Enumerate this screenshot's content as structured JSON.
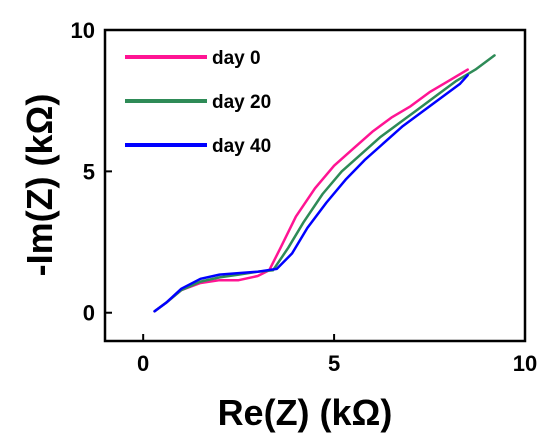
{
  "chart_data": {
    "type": "line",
    "xlabel": "Re(Z) (kΩ)",
    "ylabel": "-Im(Z) (kΩ)",
    "xlim": [
      -1,
      10
    ],
    "ylim": [
      -1,
      10
    ],
    "x_ticks": [
      "0",
      "5",
      "10"
    ],
    "y_ticks": [
      "0",
      "5",
      "10"
    ],
    "grid": false,
    "legend_position": "top-left",
    "series": [
      {
        "name": "day 0",
        "color": "#ff1493",
        "points": [
          [
            0.3,
            0.05
          ],
          [
            0.6,
            0.35
          ],
          [
            1.0,
            0.8
          ],
          [
            1.5,
            1.05
          ],
          [
            2.0,
            1.15
          ],
          [
            2.5,
            1.15
          ],
          [
            3.0,
            1.3
          ],
          [
            3.3,
            1.5
          ],
          [
            3.6,
            2.3
          ],
          [
            4.0,
            3.4
          ],
          [
            4.5,
            4.4
          ],
          [
            5.0,
            5.2
          ],
          [
            5.5,
            5.8
          ],
          [
            6.0,
            6.4
          ],
          [
            6.5,
            6.9
          ],
          [
            7.0,
            7.3
          ],
          [
            7.5,
            7.8
          ],
          [
            8.0,
            8.2
          ],
          [
            8.5,
            8.6
          ]
        ]
      },
      {
        "name": "day 20",
        "color": "#2e8b57",
        "points": [
          [
            0.3,
            0.05
          ],
          [
            0.6,
            0.35
          ],
          [
            1.0,
            0.8
          ],
          [
            1.5,
            1.1
          ],
          [
            2.0,
            1.25
          ],
          [
            2.5,
            1.35
          ],
          [
            3.0,
            1.45
          ],
          [
            3.4,
            1.5
          ],
          [
            3.8,
            2.3
          ],
          [
            4.2,
            3.2
          ],
          [
            4.7,
            4.2
          ],
          [
            5.2,
            5.0
          ],
          [
            5.7,
            5.6
          ],
          [
            6.2,
            6.2
          ],
          [
            6.7,
            6.7
          ],
          [
            7.2,
            7.2
          ],
          [
            7.7,
            7.7
          ],
          [
            8.2,
            8.2
          ],
          [
            8.7,
            8.6
          ],
          [
            9.2,
            9.1
          ]
        ]
      },
      {
        "name": "day 40",
        "color": "#0000ff",
        "points": [
          [
            0.3,
            0.05
          ],
          [
            0.6,
            0.35
          ],
          [
            1.0,
            0.85
          ],
          [
            1.5,
            1.2
          ],
          [
            2.0,
            1.35
          ],
          [
            2.5,
            1.4
          ],
          [
            3.0,
            1.45
          ],
          [
            3.5,
            1.55
          ],
          [
            3.9,
            2.1
          ],
          [
            4.3,
            3.0
          ],
          [
            4.8,
            3.9
          ],
          [
            5.3,
            4.7
          ],
          [
            5.8,
            5.4
          ],
          [
            6.3,
            6.0
          ],
          [
            6.8,
            6.6
          ],
          [
            7.3,
            7.1
          ],
          [
            7.8,
            7.6
          ],
          [
            8.3,
            8.1
          ],
          [
            8.5,
            8.4
          ]
        ]
      }
    ]
  }
}
